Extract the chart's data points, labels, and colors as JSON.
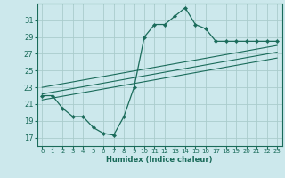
{
  "title": "",
  "xlabel": "Humidex (Indice chaleur)",
  "bg_color": "#cce8ec",
  "grid_color": "#aacccc",
  "line_color": "#1a6b5a",
  "xlim": [
    -0.5,
    23.5
  ],
  "ylim": [
    16.0,
    33.0
  ],
  "yticks": [
    17,
    19,
    21,
    23,
    25,
    27,
    29,
    31
  ],
  "xticks": [
    0,
    1,
    2,
    3,
    4,
    5,
    6,
    7,
    8,
    9,
    10,
    11,
    12,
    13,
    14,
    15,
    16,
    17,
    18,
    19,
    20,
    21,
    22,
    23
  ],
  "main_curve_x": [
    0,
    1,
    2,
    3,
    4,
    5,
    6,
    7,
    8,
    9,
    10,
    11,
    12,
    13,
    14,
    15,
    16,
    17,
    18,
    19,
    20,
    21,
    22,
    23
  ],
  "main_curve_y": [
    22.0,
    22.0,
    20.5,
    19.5,
    19.5,
    18.2,
    17.5,
    17.3,
    19.5,
    23.0,
    29.0,
    30.5,
    30.5,
    31.5,
    32.5,
    30.5,
    30.0,
    28.5,
    28.5,
    28.5,
    28.5,
    28.5,
    28.5,
    28.5
  ],
  "line1_x": [
    0,
    23
  ],
  "line1_y": [
    21.5,
    26.5
  ],
  "line2_x": [
    0,
    23
  ],
  "line2_y": [
    22.2,
    27.2
  ],
  "line3_x": [
    0,
    23
  ],
  "line3_y": [
    23.0,
    28.0
  ]
}
